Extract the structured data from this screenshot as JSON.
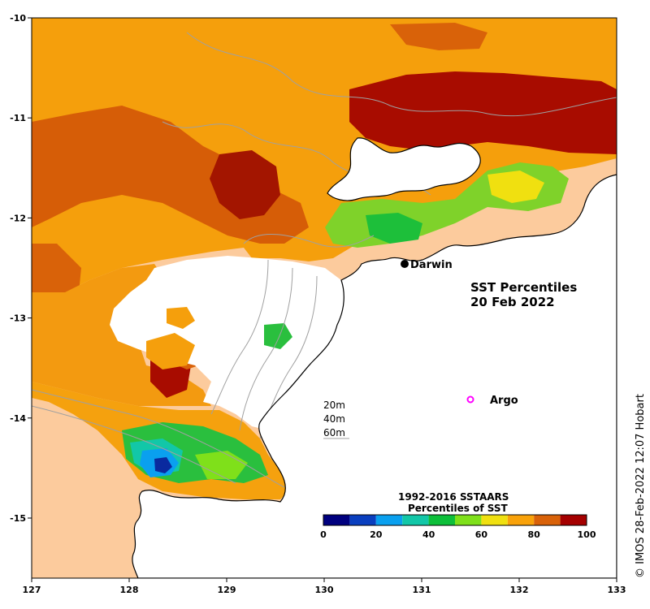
{
  "map": {
    "title_line1": "SST Percentiles",
    "title_line2": "20 Feb 2022",
    "credit": "© IMOS 28-Feb-2022 12:07 Hobart",
    "ocean_color": "#fccb9d",
    "land_color": "#ffffff",
    "x_ticks": [
      "127",
      "128",
      "129",
      "130",
      "131",
      "132",
      "133"
    ],
    "y_ticks": [
      "-10",
      "-11",
      "-12",
      "-13",
      "-14",
      "-15"
    ],
    "places": [
      {
        "name": "Darwin",
        "marker": "filled-circle",
        "color": "#000000"
      }
    ],
    "argo_label": "Argo",
    "argo_color": "#ff00ff",
    "depth_contours": [
      "20m",
      "40m",
      "60m"
    ],
    "contour_color": "#a0a0a0"
  },
  "legend": {
    "title_line1": "1992-2016 SSTAARS",
    "title_line2": "Percentiles of SST",
    "colors": [
      "#00007f",
      "#0a3fbf",
      "#0aa0ef",
      "#12c7a8",
      "#0dbf3a",
      "#7fe01a",
      "#f0e010",
      "#f9a20a",
      "#d96209",
      "#a50000"
    ],
    "ticks": [
      "0",
      "20",
      "40",
      "60",
      "80",
      "100"
    ]
  }
}
